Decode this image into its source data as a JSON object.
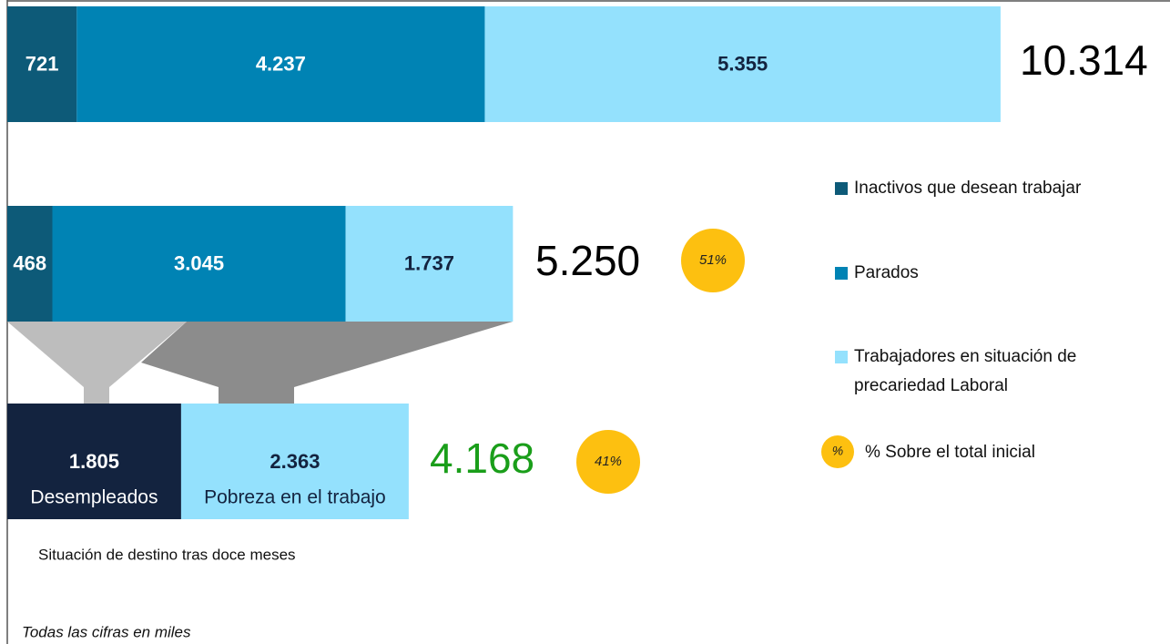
{
  "chart_data": {
    "type": "funnel",
    "series": [
      {
        "name": "Inactivos que desean trabajar",
        "color": "#0d5a78",
        "values": [
          721,
          468
        ],
        "value_labels": [
          "721",
          "468"
        ]
      },
      {
        "name": "Parados",
        "color": "#0083b4",
        "values": [
          4237,
          3045
        ],
        "value_labels": [
          "4.237",
          "3.045"
        ]
      },
      {
        "name": "Trabajadores en situación de precariedad Laboral",
        "color": "#94e1fd",
        "values": [
          5355,
          1737
        ],
        "value_labels": [
          "5.355",
          "1.737"
        ]
      }
    ],
    "totals": [
      10314,
      5250
    ],
    "total_labels": [
      "10.314",
      "5.250"
    ],
    "shares": [
      null,
      51
    ],
    "share_labels": [
      null,
      "51%"
    ],
    "destination": {
      "caption": "Situación de destino tras doce meses",
      "segments": [
        {
          "name": "Desempleados",
          "color": "#13233f",
          "value": 1805,
          "value_label": "1.805"
        },
        {
          "name": "Pobreza en el trabajo",
          "color": "#94e1fd",
          "value": 2363,
          "value_label": "2.363"
        }
      ],
      "total": 4168,
      "total_label": "4.168",
      "total_color": "#1a9e1a",
      "share": 41,
      "share_label": "41%"
    },
    "share_legend": {
      "symbol": "%",
      "label": "% Sobre el total inicial",
      "color": "#fdc010"
    },
    "note": "Todas las cifras en miles"
  }
}
